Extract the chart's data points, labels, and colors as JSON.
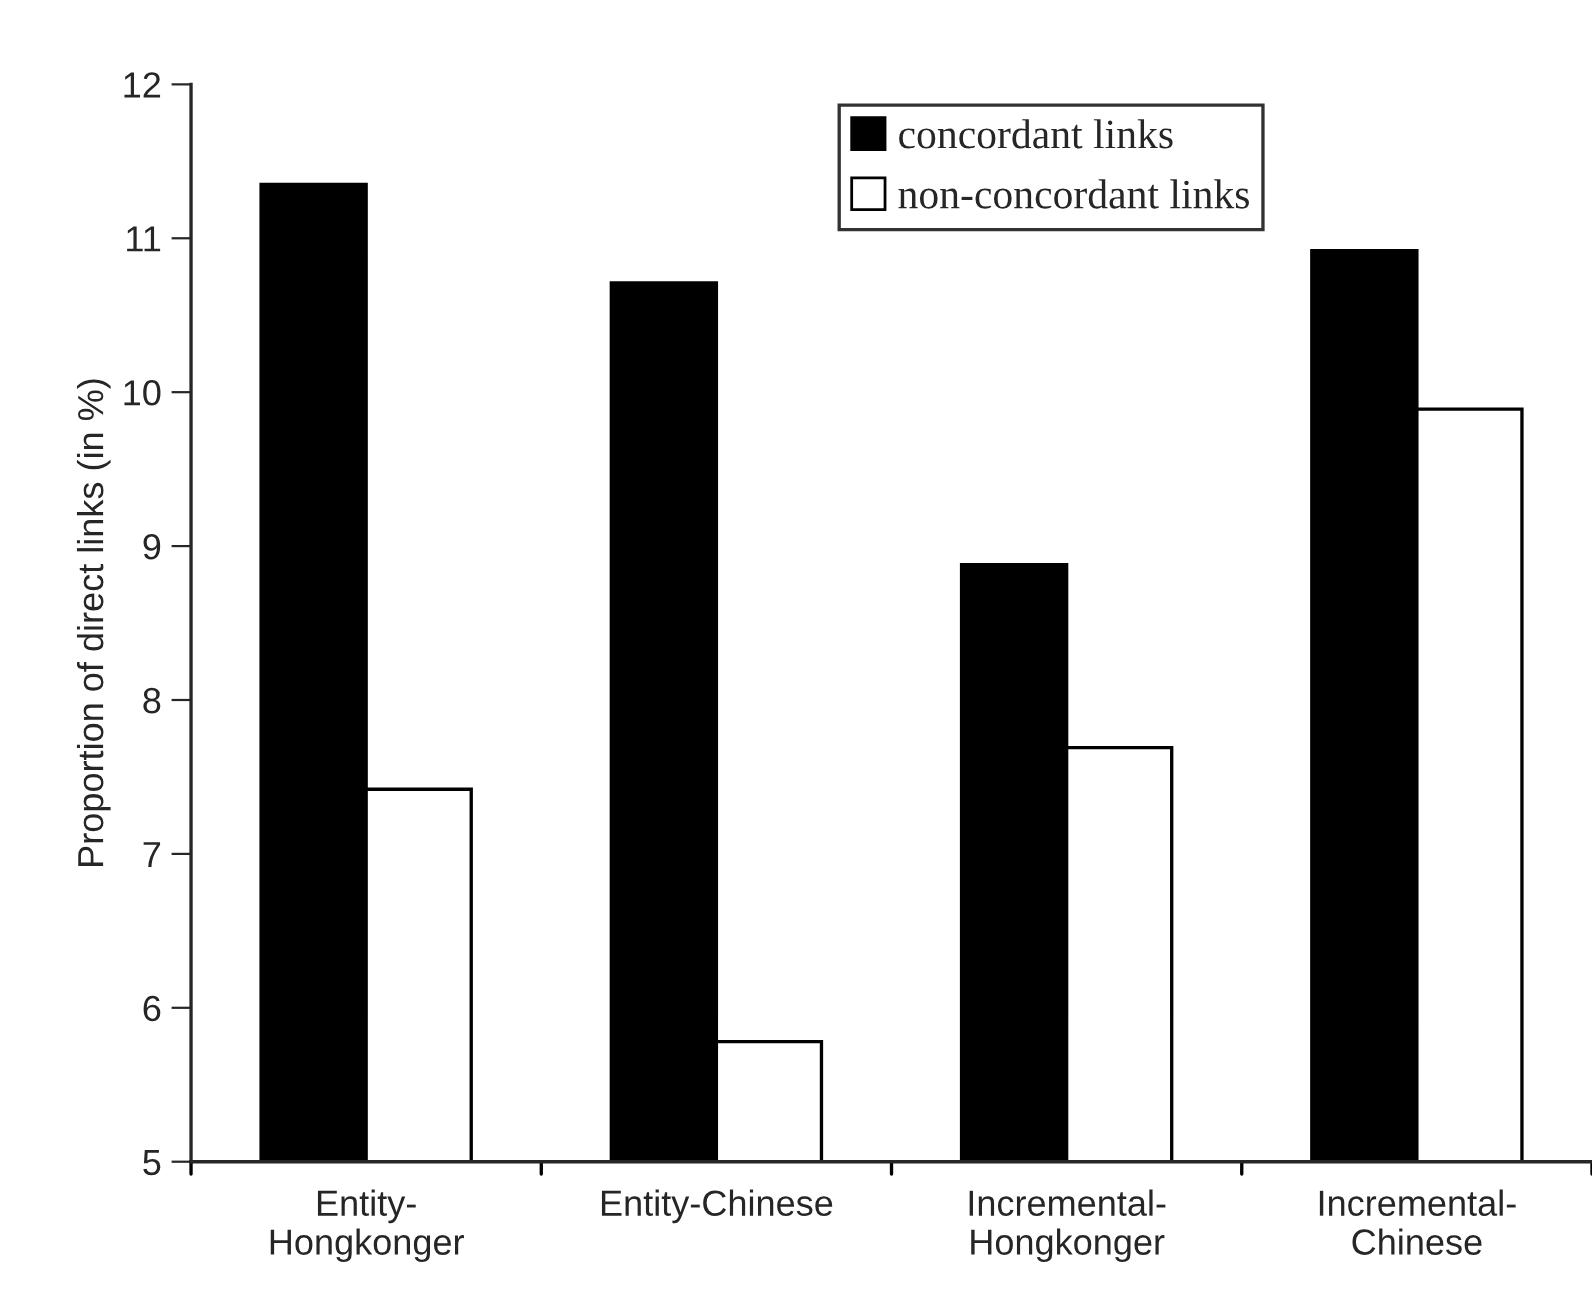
{
  "chart_data": {
    "type": "bar",
    "ylabel": "Proportion of direct links (in %)",
    "categories": [
      "Entity-\nHongkonger",
      "Entity-Chinese",
      "Incremental-\nHongkonger",
      "Incremental-\nChinese"
    ],
    "series": [
      {
        "name": "concordant links",
        "color": "#000000",
        "values": [
          11.35,
          10.71,
          8.88,
          10.92
        ]
      },
      {
        "name": "non-concordant links",
        "color": "#ffffff",
        "values": [
          7.42,
          5.78,
          7.69,
          9.89
        ]
      }
    ],
    "ylim": [
      5,
      12
    ],
    "yticks": [
      5,
      6,
      7,
      8,
      9,
      10,
      11,
      12
    ],
    "grid": false,
    "legend": "top right"
  }
}
